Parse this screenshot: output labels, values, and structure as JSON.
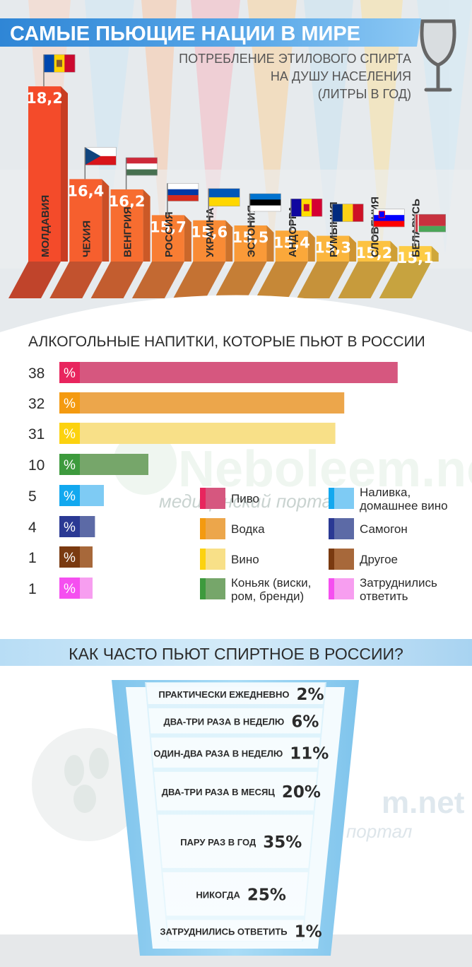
{
  "section1": {
    "title": "САМЫЕ ПЬЮЩИЕ НАЦИИ В МИРЕ",
    "subtitle_lines": [
      "ПОТРЕБЛЕНИЕ ЭТИЛОВОГО СПИРТА",
      "НА ДУШУ НАСЕЛЕНИЯ",
      "(ЛИТРЫ В ГОД)"
    ],
    "icon": "wine-glass-icon"
  },
  "section2": {
    "title": "АЛКОГОЛЬНЫЕ НАПИТКИ, КОТОРЫЕ ПЬЮТ В РОССИИ",
    "percent_sign": "%"
  },
  "section3": {
    "title": "КАК ЧАСТО ПЬЮТ СПИРТНОЕ В РОССИИ?"
  },
  "watermark": {
    "brand": "Neboleem.net",
    "tagline_1": "медицинский портал",
    "brand_2": "m.net",
    "tagline_2": "портал"
  },
  "chart_data": [
    {
      "type": "bar",
      "categories": [
        "МОЛДАВИЯ",
        "ЧЕХИЯ",
        "ВЕНГРИЯ",
        "РОССИЯ",
        "УКРАИНА",
        "ЭСТОНИЯ",
        "АНДОРРА",
        "РУМЫНИЯ",
        "СЛОВЕНИЯ",
        "БЕЛАРУСЬ"
      ],
      "values": [
        18.2,
        16.4,
        16.2,
        15.7,
        15.6,
        15.5,
        15.4,
        15.3,
        15.2,
        15.1
      ],
      "value_labels": [
        "18,2",
        "16,4",
        "16,2",
        "15,7",
        "15,6",
        "15,5",
        "15,4",
        "15,3",
        "15,2",
        "15,1"
      ],
      "flags": [
        "moldova-flag-icon",
        "czech-flag-icon",
        "hungary-flag-icon",
        "russia-flag-icon",
        "ukraine-flag-icon",
        "estonia-flag-icon",
        "andorra-flag-icon",
        "romania-flag-icon",
        "slovenia-flag-icon",
        "belarus-flag-icon"
      ],
      "colors": [
        "#f44b2a",
        "#f65f2e",
        "#f76d30",
        "#f87d33",
        "#f98b35",
        "#fa9a38",
        "#fba83a",
        "#fbb53d",
        "#fcc241",
        "#fdcc45"
      ],
      "ylim": [
        0,
        20
      ]
    },
    {
      "type": "bar",
      "orientation": "horizontal",
      "categories": [
        "Пиво",
        "Водка",
        "Вино",
        "Коньяк (виски, ром, бренди)",
        "Наливка, домашнее вино",
        "Самогон",
        "Другое",
        "Затруднились ответить"
      ],
      "legend_lines": [
        [
          "Пиво"
        ],
        [
          "Водка"
        ],
        [
          "Вино"
        ],
        [
          "Коньяк (виски,",
          "ром, бренди)"
        ],
        [
          "Наливка,",
          "домашнее вино"
        ],
        [
          "Самогон"
        ],
        [
          "Другое"
        ],
        [
          "Затруднились",
          "ответить"
        ]
      ],
      "values": [
        38,
        32,
        31,
        10,
        5,
        4,
        1,
        1
      ],
      "colors": [
        "#d6577f",
        "#eca64b",
        "#f8e088",
        "#76a66a",
        "#7ecbf4",
        "#5c6aa6",
        "#a7683a",
        "#f79ef0"
      ],
      "accent_colors": [
        "#e8255e",
        "#f49a10",
        "#fcd20f",
        "#3d9a3d",
        "#12a8ef",
        "#2a3994",
        "#7a3a10",
        "#f54ff0"
      ],
      "unit": "%",
      "legend_placement": "bottom-right"
    },
    {
      "type": "funnel",
      "categories": [
        "ПРАКТИЧЕСКИ ЕЖЕДНЕВНО",
        "ДВА-ТРИ РАЗА В НЕДЕЛЮ",
        "ОДИН-ДВА РАЗА В НЕДЕЛЮ",
        "ДВА-ТРИ РАЗА В МЕСЯЦ",
        "ПАРУ РАЗ В ГОД",
        "НИКОГДА",
        "ЗАТРУДНИЛИСЬ ОТВЕТИТЬ"
      ],
      "values": [
        2,
        6,
        11,
        20,
        35,
        25,
        1
      ],
      "value_labels": [
        "2%",
        "6%",
        "11%",
        "20%",
        "35%",
        "25%",
        "1%"
      ],
      "unit": "%"
    }
  ]
}
